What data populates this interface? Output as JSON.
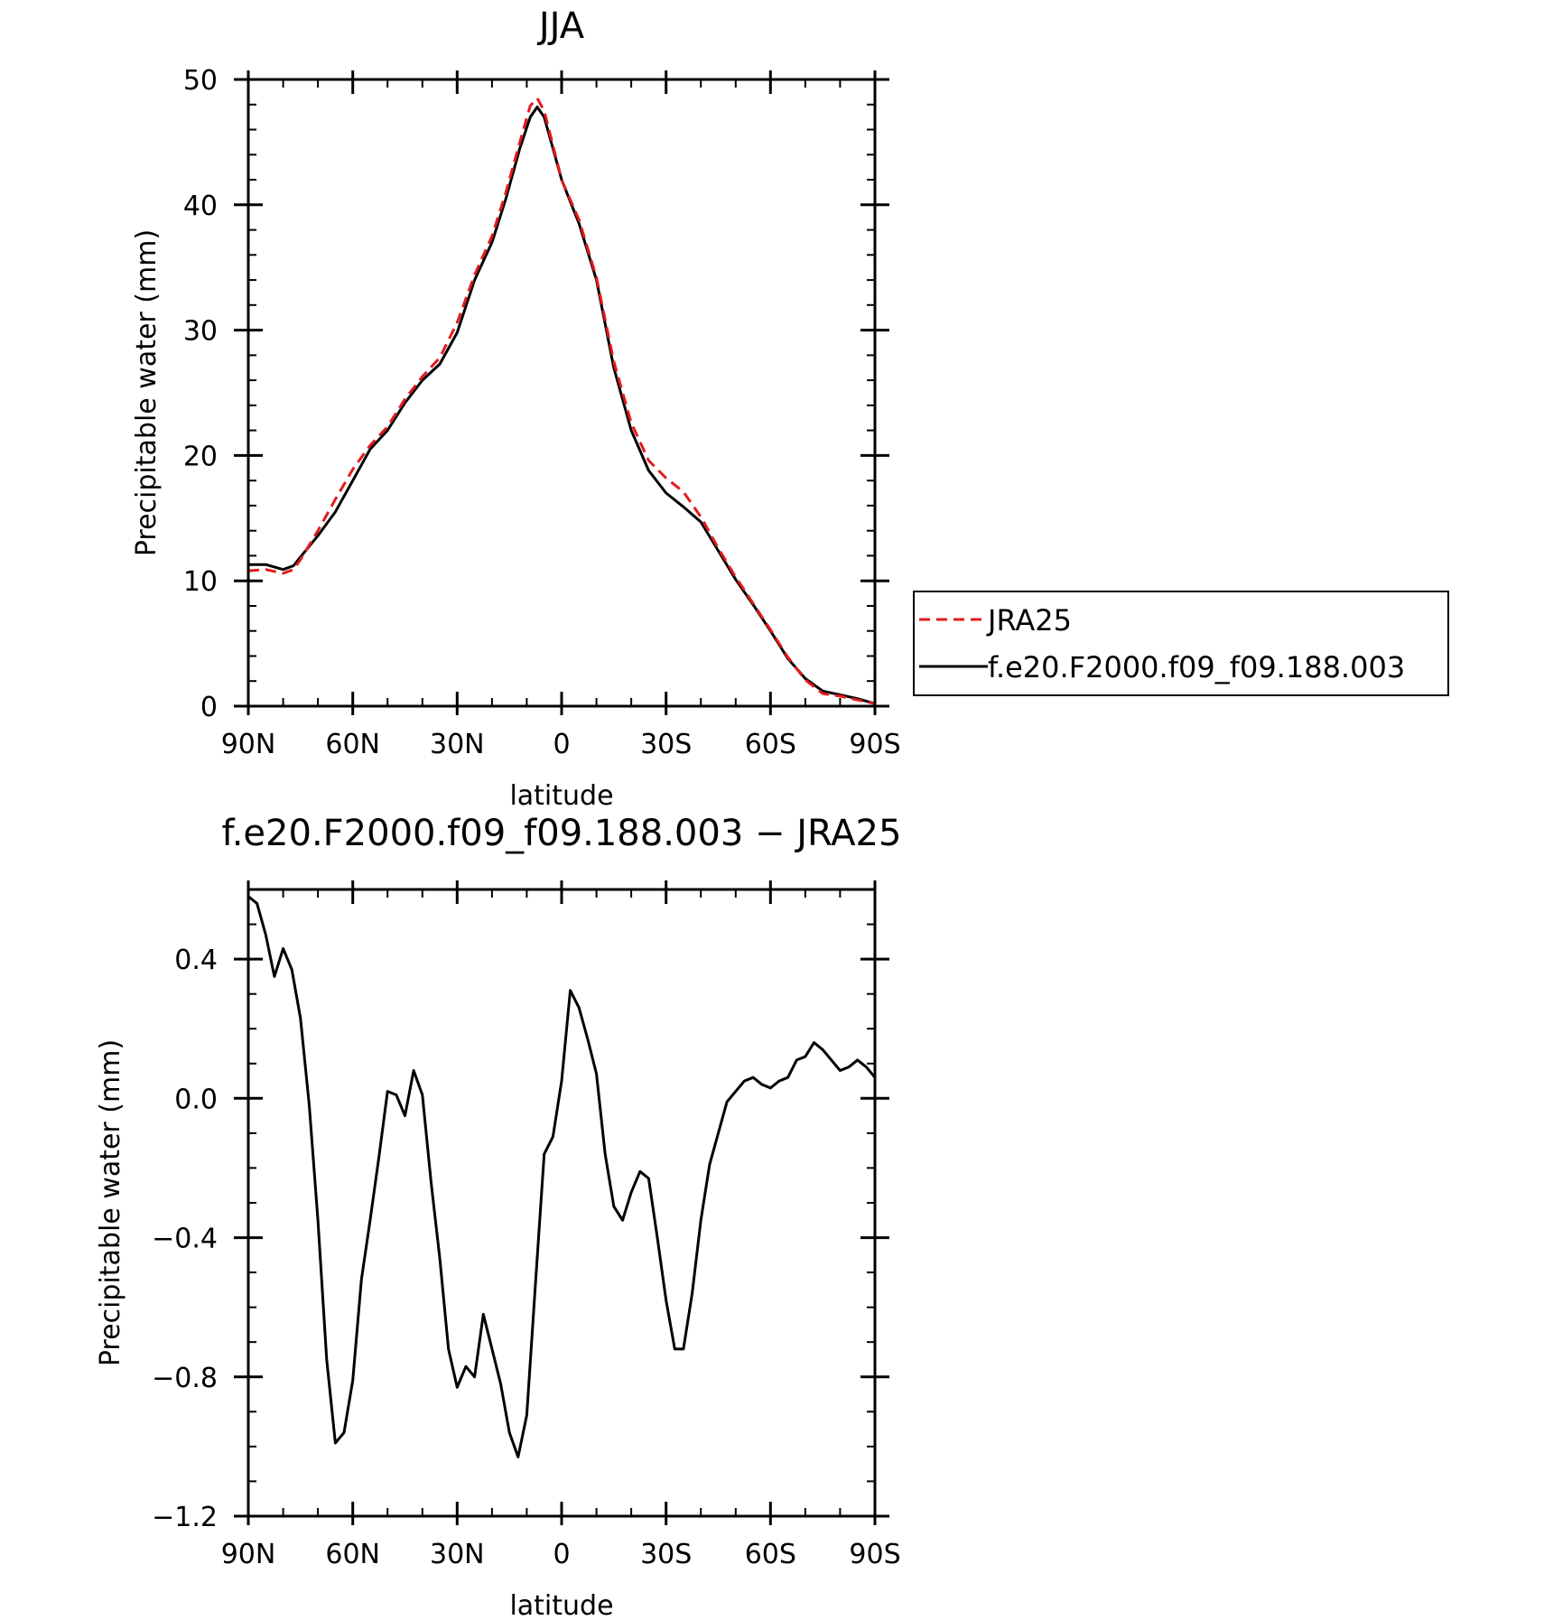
{
  "colors": {
    "jra25": "#e41a1c",
    "model": "#000000",
    "axes": "#000000"
  },
  "chart_data": [
    {
      "type": "line",
      "title": "JJA",
      "xlabel": "latitude",
      "ylabel": "Precipitable water (mm)",
      "xlim": [
        90,
        -90
      ],
      "ylim": [
        0,
        50
      ],
      "xticks": [
        90,
        60,
        30,
        0,
        -30,
        -60,
        -90
      ],
      "xtick_labels": [
        "90N",
        "60N",
        "30N",
        "0",
        "30S",
        "60S",
        "90S"
      ],
      "yticks": [
        0,
        10,
        20,
        30,
        40,
        50
      ],
      "ytick_labels": [
        "0",
        "10",
        "20",
        "30",
        "40",
        "50"
      ],
      "grid": false,
      "legend": "outside-right",
      "series": [
        {
          "name": "JRA25",
          "style": "dashed",
          "color": "#e41a1c",
          "x": [
            90,
            85,
            80,
            77,
            75,
            70,
            65,
            60,
            55,
            50,
            45,
            40,
            35,
            30,
            25,
            20,
            16,
            12,
            9,
            7,
            5,
            0,
            -5,
            -10,
            -15,
            -20,
            -25,
            -30,
            -35,
            -40,
            -45,
            -50,
            -55,
            -60,
            -65,
            -70,
            -75,
            -80,
            -85,
            -90
          ],
          "y": [
            10.8,
            10.9,
            10.6,
            10.9,
            11.7,
            14.0,
            16.5,
            18.9,
            20.8,
            22.3,
            24.5,
            26.3,
            27.8,
            30.6,
            34.4,
            37.5,
            41.0,
            45.0,
            47.9,
            48.5,
            47.5,
            42.0,
            38.8,
            34.2,
            27.5,
            22.6,
            19.6,
            18.2,
            17.1,
            15.1,
            12.6,
            10.3,
            8.2,
            6.1,
            3.9,
            2.1,
            1.0,
            0.8,
            0.5,
            0.2
          ]
        },
        {
          "name": "f.e20.F2000.f09_f09.188.003",
          "style": "solid",
          "color": "#000000",
          "x": [
            90,
            85,
            80,
            77,
            75,
            70,
            65,
            60,
            55,
            50,
            45,
            40,
            35,
            30,
            25,
            20,
            16,
            12,
            9,
            7,
            5,
            0,
            -5,
            -10,
            -15,
            -20,
            -25,
            -30,
            -35,
            -40,
            -45,
            -50,
            -55,
            -60,
            -65,
            -70,
            -75,
            -80,
            -85,
            -90
          ],
          "y": [
            11.3,
            11.3,
            10.9,
            11.2,
            11.9,
            13.6,
            15.5,
            18.0,
            20.5,
            22.0,
            24.2,
            26.0,
            27.3,
            29.8,
            34.0,
            37.0,
            40.5,
            44.5,
            47.0,
            47.8,
            47.0,
            42.0,
            38.5,
            34.0,
            27.0,
            22.0,
            18.8,
            17.0,
            15.9,
            14.7,
            12.4,
            10.1,
            8.1,
            6.0,
            3.8,
            2.2,
            1.2,
            0.9,
            0.6,
            0.2
          ]
        }
      ]
    },
    {
      "type": "line",
      "title": "f.e20.F2000.f09_f09.188.003 − JRA25",
      "xlabel": "latitude",
      "ylabel": "Precipitable water (mm)",
      "xlim": [
        90,
        -90
      ],
      "ylim": [
        -1.2,
        0.6
      ],
      "xticks": [
        90,
        60,
        30,
        0,
        -30,
        -60,
        -90
      ],
      "xtick_labels": [
        "90N",
        "60N",
        "30N",
        "0",
        "30S",
        "60S",
        "90S"
      ],
      "yticks": [
        0.4,
        0.0,
        -0.4,
        -0.8,
        -1.2
      ],
      "ytick_labels": [
        "0.4",
        "0.0",
        "−0.4",
        "−0.8",
        "−1.2"
      ],
      "grid": false,
      "series": [
        {
          "style": "solid",
          "color": "#000000",
          "x": [
            90,
            87.5,
            85,
            82.5,
            80,
            77.5,
            75,
            72.5,
            70,
            67.5,
            65,
            62.5,
            60,
            57.5,
            55,
            52.5,
            50,
            47.5,
            45,
            42.5,
            40,
            37.5,
            35,
            32.5,
            30,
            27.5,
            25,
            22.5,
            20,
            17.5,
            15,
            12.5,
            10,
            7.5,
            5,
            2.5,
            0,
            -2.5,
            -5,
            -7.5,
            -10,
            -12.5,
            -15,
            -17.5,
            -20,
            -22.5,
            -25,
            -27.5,
            -30,
            -32.5,
            -35,
            -37.5,
            -40,
            -42.5,
            -45,
            -47.5,
            -50,
            -52.5,
            -55,
            -57.5,
            -60,
            -62.5,
            -65,
            -67.5,
            -70,
            -72.5,
            -75,
            -77.5,
            -80,
            -82.5,
            -85,
            -87.5,
            -90
          ],
          "y": [
            0.58,
            0.56,
            0.47,
            0.35,
            0.43,
            0.37,
            0.23,
            -0.02,
            -0.35,
            -0.75,
            -0.99,
            -0.96,
            -0.81,
            -0.52,
            -0.35,
            -0.17,
            0.02,
            0.01,
            -0.05,
            0.08,
            0.01,
            -0.24,
            -0.46,
            -0.72,
            -0.83,
            -0.77,
            -0.8,
            -0.62,
            -0.72,
            -0.82,
            -0.96,
            -1.03,
            -0.91,
            -0.53,
            -0.16,
            -0.11,
            0.05,
            0.31,
            0.26,
            0.17,
            0.07,
            -0.16,
            -0.31,
            -0.35,
            -0.27,
            -0.21,
            -0.23,
            -0.4,
            -0.58,
            -0.72,
            -0.72,
            -0.56,
            -0.35,
            -0.19,
            -0.1,
            -0.01,
            0.02,
            0.05,
            0.06,
            0.04,
            0.03,
            0.05,
            0.06,
            0.11,
            0.12,
            0.16,
            0.14,
            0.11,
            0.08,
            0.09,
            0.11,
            0.09,
            0.06
          ]
        }
      ]
    }
  ]
}
